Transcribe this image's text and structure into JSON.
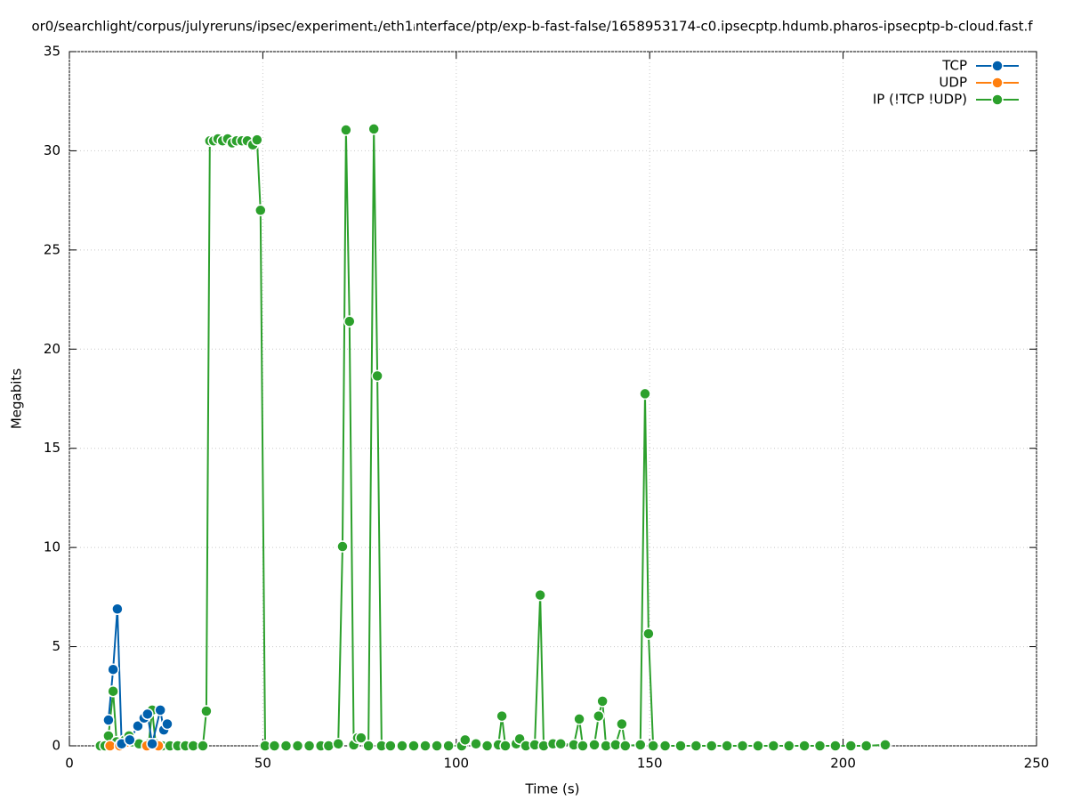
{
  "chart_data": {
    "type": "line",
    "title": "or0/searchlight/corpus/julyreruns/ipsec/experiment₁/eth1ᵢnterface/ptp/exp-b-fast-false/1658953174-c0.ipsecptp.hdumb.pharos-ipsecptp-b-cloud.fast.f",
    "x_label": "Time (s)",
    "y_label": "Megabits",
    "xlim": [
      0,
      250
    ],
    "xticks": [
      0,
      50,
      100,
      150,
      200,
      250
    ],
    "ylim": [
      0,
      35
    ],
    "yticks": [
      0,
      5,
      10,
      15,
      20,
      25,
      30,
      35
    ],
    "grid": true,
    "legend": "top-right",
    "series": [
      {
        "name": "TCP",
        "color": "#0060ad",
        "x": [
          10.1,
          11.3,
          12.4,
          13.5,
          15.6,
          17.7,
          19.3,
          20.2,
          21.4,
          23.5,
          24.4,
          25.3
        ],
        "values": [
          1.3,
          3.85,
          6.9,
          0.1,
          0.3,
          1.0,
          1.4,
          1.6,
          0.1,
          1.8,
          0.8,
          1.1
        ]
      },
      {
        "name": "UDP",
        "color": "#ff7f0e",
        "x": [
          10.5,
          13,
          20,
          23
        ],
        "values": [
          0,
          0,
          0,
          0
        ]
      },
      {
        "name": "IP (!TCP  !UDP)",
        "color": "#2ca02c",
        "x": [
          8,
          9.2,
          10.1,
          11.3,
          12.2,
          13.3,
          14.4,
          15.4,
          16.3,
          18,
          20.5,
          21.4,
          22.3,
          24,
          26,
          28,
          30,
          32,
          34.5,
          35.4,
          36.3,
          37.3,
          38.4,
          39.6,
          40.9,
          42.1,
          43.2,
          44.6,
          46,
          47.4,
          48.5,
          49.4,
          50.6,
          53,
          56,
          59,
          62,
          65,
          67,
          69.5,
          70.6,
          71.5,
          72.4,
          73.5,
          74.5,
          75.4,
          77.3,
          78.7,
          79.6,
          80.7,
          83,
          86,
          89,
          92,
          95,
          98,
          101.4,
          102.3,
          105.1,
          108,
          110.9,
          111.8,
          112.7,
          115.5,
          116.4,
          118,
          120.3,
          121.7,
          122.6,
          125,
          127,
          130.4,
          131.8,
          132.7,
          135.7,
          136.8,
          137.8,
          138.7,
          141.2,
          142.8,
          143.7,
          147.6,
          148.8,
          149.7,
          150.9,
          154,
          158,
          162,
          166,
          170,
          174,
          178,
          182,
          186,
          190,
          194,
          198,
          202,
          206,
          210.9
        ],
        "values": [
          0,
          0,
          0.5,
          2.75,
          0.2,
          0.1,
          0.3,
          0.5,
          0.2,
          0.1,
          0.1,
          1.8,
          0.1,
          0,
          0,
          0,
          0,
          0,
          0,
          1.75,
          30.5,
          30.5,
          30.6,
          30.5,
          30.6,
          30.4,
          30.5,
          30.5,
          30.5,
          30.3,
          30.55,
          27,
          0,
          0,
          0,
          0,
          0,
          0,
          0,
          0.1,
          10.05,
          31.05,
          21.4,
          0.05,
          0.4,
          0.4,
          0,
          31.1,
          18.65,
          0,
          0,
          0,
          0,
          0,
          0,
          0,
          0,
          0.3,
          0.1,
          0,
          0.05,
          1.5,
          0,
          0.1,
          0.35,
          0,
          0.05,
          7.6,
          0,
          0.1,
          0.1,
          0.05,
          1.35,
          0,
          0.05,
          1.5,
          2.25,
          0,
          0.05,
          1.1,
          0,
          0.05,
          17.75,
          5.65,
          0,
          0,
          0,
          0,
          0,
          0,
          0,
          0,
          0,
          0,
          0,
          0,
          0,
          0,
          0,
          0.05
        ]
      }
    ]
  }
}
